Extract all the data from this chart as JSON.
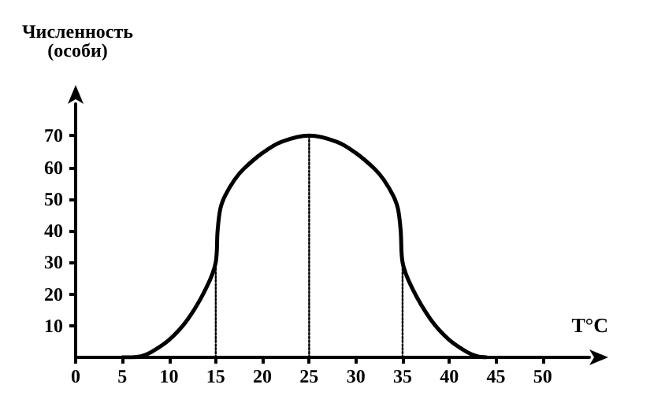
{
  "chart_data": {
    "type": "line",
    "ylabel": "Численность\n(особи)",
    "xlabel": "T°C",
    "xlim": [
      0,
      55
    ],
    "ylim": [
      0,
      80
    ],
    "xticks": [
      0,
      5,
      10,
      15,
      20,
      25,
      30,
      35,
      40,
      45,
      50
    ],
    "yticks": [
      10,
      20,
      30,
      40,
      50,
      60,
      70
    ],
    "grid": false,
    "marker": "none",
    "line_style": "solid",
    "series": [
      {
        "color": "#000000",
        "x": [
          5,
          6,
          7,
          8,
          10,
          12,
          14,
          15,
          15.2,
          15.5,
          16,
          17,
          18,
          20,
          22,
          25,
          28,
          30,
          32,
          33,
          34,
          34.5,
          34.8,
          35,
          36,
          38,
          40,
          42,
          43,
          44
        ],
        "values": [
          0,
          0,
          0.3,
          1.5,
          5.5,
          12,
          22,
          30,
          40,
          47,
          51,
          56,
          59.5,
          64.5,
          68,
          70,
          68,
          64.5,
          59.5,
          56,
          51,
          47,
          40,
          30,
          22,
          12,
          5.5,
          1.5,
          0.3,
          0
        ]
      },
      {
        "color": "#000000",
        "line_style": "dotted",
        "x": [
          15,
          15
        ],
        "values": [
          0,
          30
        ]
      },
      {
        "color": "#000000",
        "line_style": "dotted",
        "x": [
          25,
          25
        ],
        "values": [
          0,
          70
        ]
      },
      {
        "color": "#000000",
        "line_style": "dotted",
        "x": [
          35,
          35
        ],
        "values": [
          0,
          30
        ]
      }
    ]
  }
}
